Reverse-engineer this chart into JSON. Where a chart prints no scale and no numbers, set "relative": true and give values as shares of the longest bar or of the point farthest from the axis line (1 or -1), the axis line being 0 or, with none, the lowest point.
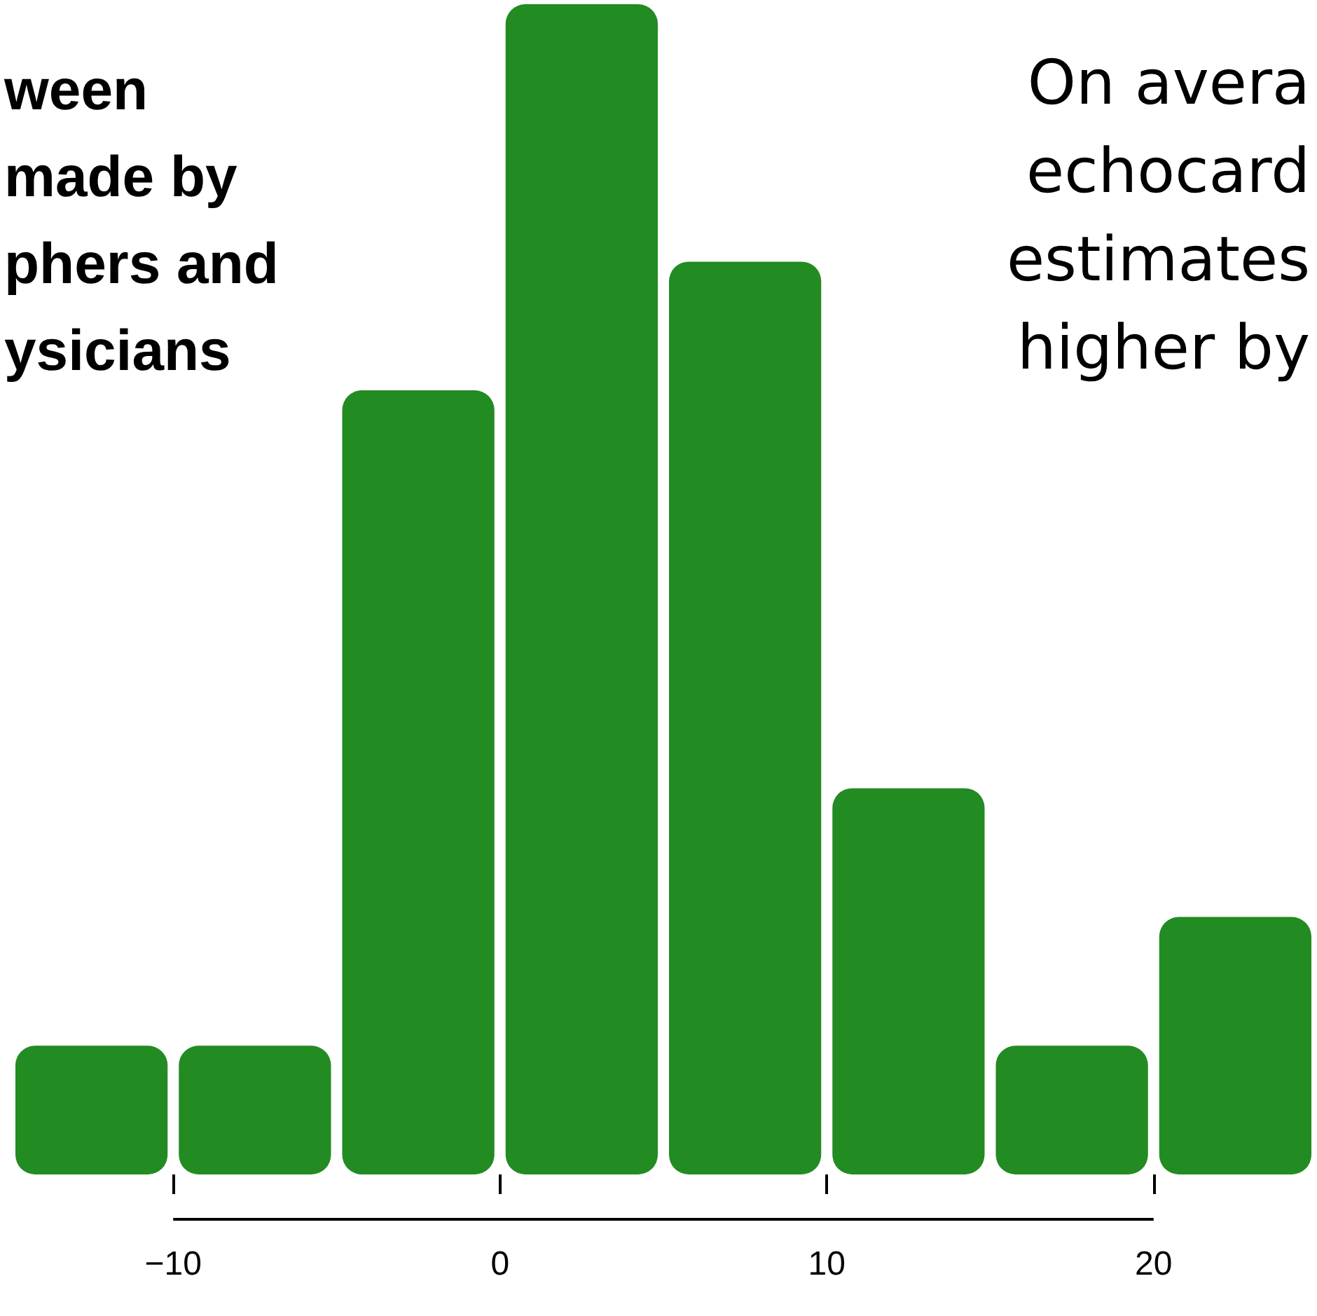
{
  "chart_data": {
    "type": "bar",
    "title": "ween\nmade by\nphers and\nysicians",
    "annotations": [
      "On avera\nechocard\nestimates\nhigher by"
    ],
    "x": [
      -12.5,
      -7.5,
      -2.5,
      2.5,
      7.5,
      12.5,
      17.5,
      22.5
    ],
    "values": [
      0.11,
      0.11,
      0.67,
      1,
      0.78,
      0.33,
      0.11,
      0.22
    ],
    "color": "#228b22",
    "relative": true,
    "xlim": [
      -15,
      25
    ],
    "xticks": [
      {
        "value": -10,
        "label": "−10"
      },
      0,
      10,
      20
    ],
    "grid": false
  }
}
